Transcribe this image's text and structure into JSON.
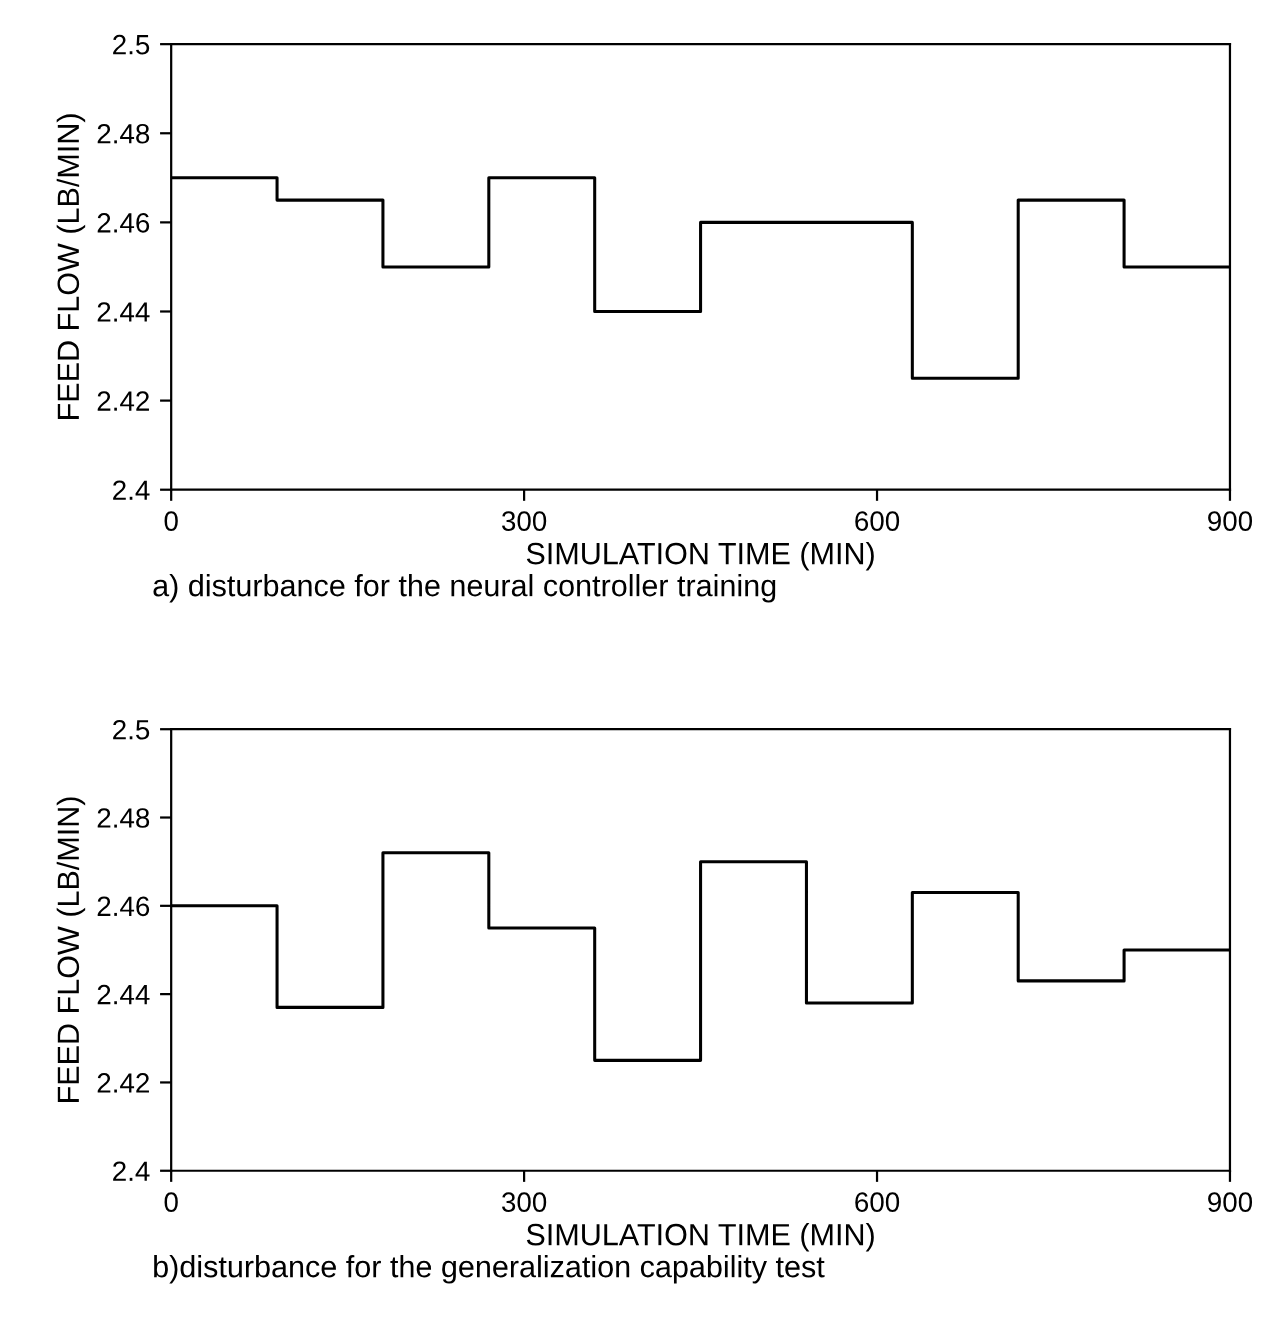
{
  "chart_data": [
    {
      "type": "step",
      "xlabel": "SIMULATION TIME (MIN)",
      "ylabel": "FEED FLOW (LB/MIN)",
      "annotations": [
        "a) disturbance for the neural controller training"
      ],
      "x": [
        0,
        90,
        180,
        270,
        360,
        450,
        630,
        720,
        810,
        900
      ],
      "series": [
        {
          "color": "#000000",
          "values": [
            2.47,
            2.465,
            2.45,
            2.47,
            2.44,
            2.46,
            2.425,
            2.465,
            2.45,
            2.45
          ]
        }
      ],
      "xlim": [
        0,
        900
      ],
      "xticks": [
        0,
        300,
        600,
        900
      ],
      "ylim": [
        2.4,
        2.5
      ],
      "yticks": [
        2.4,
        2.42,
        2.44,
        2.46,
        2.48,
        2.5
      ],
      "grid": false,
      "legend": false,
      "marker": "none",
      "line_style": "solid"
    },
    {
      "type": "step",
      "xlabel": "SIMULATION TIME (MIN)",
      "ylabel": "FEED FLOW (LB/MIN)",
      "annotations": [
        "b)disturbance for the generalization capability test"
      ],
      "x": [
        0,
        90,
        180,
        270,
        360,
        450,
        540,
        630,
        720,
        810,
        900
      ],
      "series": [
        {
          "color": "#000000",
          "values": [
            2.46,
            2.437,
            2.472,
            2.455,
            2.425,
            2.47,
            2.438,
            2.463,
            2.443,
            2.45,
            2.45
          ]
        }
      ],
      "xlim": [
        0,
        900
      ],
      "xticks": [
        0,
        300,
        600,
        900
      ],
      "ylim": [
        2.4,
        2.5
      ],
      "yticks": [
        2.4,
        2.42,
        2.44,
        2.46,
        2.48,
        2.5
      ],
      "grid": false,
      "legend": false,
      "marker": "none",
      "line_style": "solid"
    }
  ]
}
